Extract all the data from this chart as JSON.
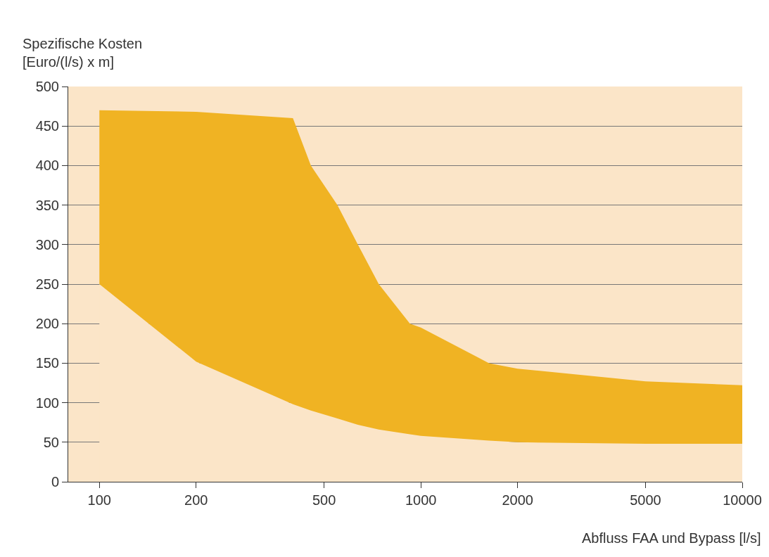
{
  "chart_data": {
    "type": "area",
    "ylabel": "Spezifische Kosten\n[Euro/(l/s) x m]",
    "xlabel": "Abfluss FAA und Bypass [l/s]",
    "x": [
      100,
      200,
      400,
      455,
      550,
      637,
      740,
      925,
      1000,
      1630,
      2000,
      5000,
      10000
    ],
    "stacked": true,
    "series": [
      {
        "color": "#fbe5c8",
        "values": [
          250,
          152,
          98,
          90,
          80,
          72,
          66,
          60,
          58,
          52,
          50,
          48,
          48
        ]
      },
      {
        "color": "#f0b323",
        "values": [
          220,
          316,
          362,
          310,
          270,
          228,
          184,
          140,
          137,
          98,
          93,
          79,
          74
        ]
      }
    ],
    "log": "x",
    "xlim": [
      80,
      10000
    ],
    "xticks": [
      100,
      200,
      500,
      1000,
      2000,
      5000,
      10000
    ],
    "ylim": [
      0,
      500
    ],
    "yticks": [
      0,
      50,
      100,
      150,
      200,
      250,
      300,
      350,
      400,
      450,
      500
    ],
    "grid": "y"
  }
}
